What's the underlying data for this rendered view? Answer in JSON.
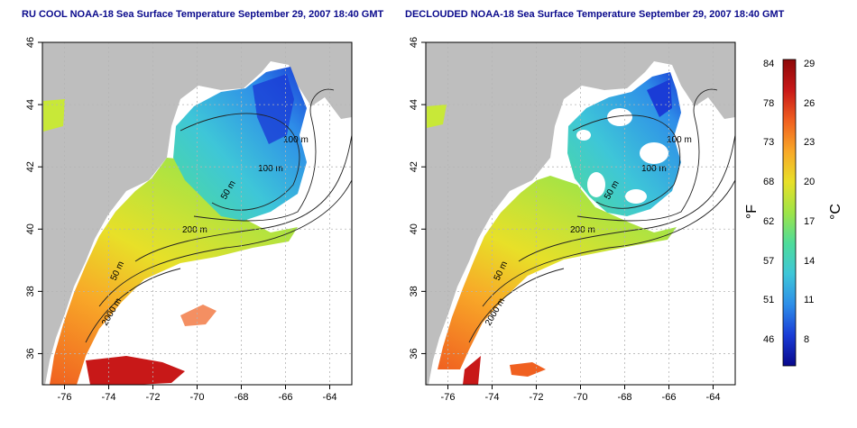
{
  "panels": [
    {
      "title": "RU COOL NOAA-18 Sea Surface Temperature September 29, 2007 18:40 GMT",
      "mode": "cool",
      "contours": [
        "100 m",
        "100 m",
        "50 m",
        "200 m",
        "50 m",
        "2000 m"
      ]
    },
    {
      "title": "DECLOUDED NOAA-18 Sea Surface Temperature September 29, 2007 18:40 GMT",
      "mode": "declouded",
      "contours": [
        "100 m",
        "100 m",
        "50 m",
        "200 m",
        "50 m",
        "2000 m"
      ]
    }
  ],
  "axes": {
    "lon_ticks": [
      "-76",
      "-74",
      "-72",
      "-70",
      "-68",
      "-66",
      "-64"
    ],
    "lat_ticks": [
      "46",
      "44",
      "42",
      "40",
      "38",
      "36"
    ],
    "lon_range": [
      -77,
      -63
    ],
    "lat_range": [
      35,
      46
    ]
  },
  "colorbar": {
    "fahrenheit_ticks": [
      "84",
      "78",
      "73",
      "68",
      "62",
      "57",
      "51",
      "46"
    ],
    "celsius_ticks": [
      "29",
      "26",
      "23",
      "20",
      "17",
      "14",
      "11",
      "8"
    ],
    "unit_f": "°F",
    "unit_c": "°C",
    "colors": [
      "#08088c",
      "#1a3cd6",
      "#2e8ee8",
      "#3ec6d8",
      "#4edc9a",
      "#9ee448",
      "#e8e028",
      "#f8a828",
      "#f06020",
      "#c81818",
      "#8c0808"
    ]
  },
  "colors": {
    "land": "#bebebe",
    "grid": "#b4b4b4",
    "title": "#0a0a8c"
  }
}
